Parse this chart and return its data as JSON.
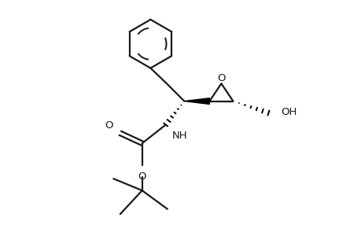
{
  "background_color": "#ffffff",
  "line_color": "#1a1a1a",
  "line_width": 1.6,
  "wedge_color": "#000000",
  "fig_width": 4.6,
  "fig_height": 3.0,
  "dpi": 100,
  "xlim": [
    0,
    9
  ],
  "ylim": [
    0,
    7
  ]
}
